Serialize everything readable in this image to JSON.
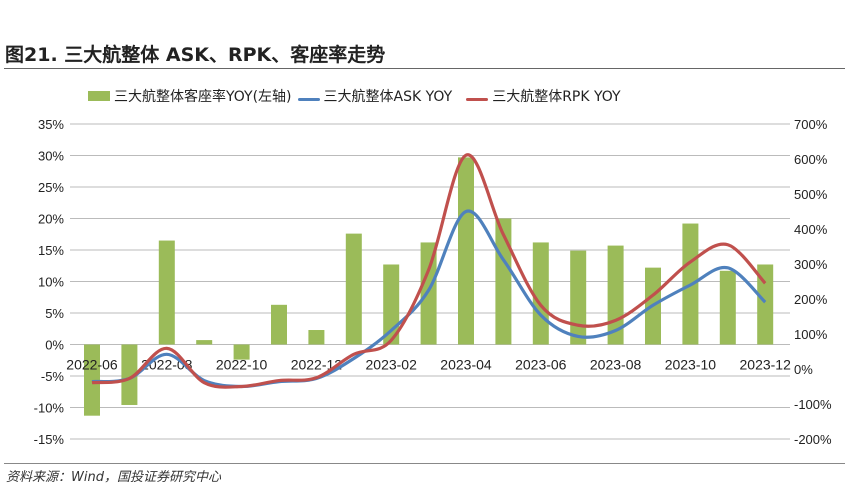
{
  "chart_data": {
    "type": "bar+line",
    "title": "图21. 三大航整体 ASK、RPK、客座率走势",
    "categories": [
      "2022-06",
      "2022-07",
      "2022-08",
      "2022-09",
      "2022-10",
      "2022-11",
      "2022-12",
      "2023-01",
      "2023-02",
      "2023-03",
      "2023-04",
      "2023-05",
      "2023-06",
      "2023-07",
      "2023-08",
      "2023-09",
      "2023-10",
      "2023-11",
      "2023-12"
    ],
    "x_tick_labels": [
      "2022-06",
      "2022-08",
      "2022-10",
      "2022-12",
      "2023-02",
      "2023-04",
      "2023-06",
      "2023-08",
      "2023-10",
      "2023-12"
    ],
    "left_axis": {
      "ylim": [
        -15,
        35
      ],
      "ticks": [
        "-15%",
        "-10%",
        "-5%",
        "0%",
        "5%",
        "10%",
        "15%",
        "20%",
        "25%",
        "30%",
        "35%"
      ]
    },
    "right_axis": {
      "ylim": [
        -200,
        700
      ],
      "ticks": [
        "-200%",
        "-100%",
        "0%",
        "100%",
        "200%",
        "300%",
        "400%",
        "500%",
        "600%",
        "700%"
      ]
    },
    "series": [
      {
        "name": "三大航整体客座率YOY(左轴)",
        "type": "bar",
        "axis": "left",
        "color": "#9BBB59",
        "values": [
          -11.3,
          -9.6,
          16.5,
          0.7,
          -2.4,
          6.3,
          2.3,
          17.6,
          12.7,
          16.2,
          29.7,
          20.0,
          16.2,
          14.9,
          15.7,
          12.2,
          19.2,
          11.7,
          12.7
        ]
      },
      {
        "name": "三大航整体ASK YOY",
        "type": "line",
        "axis": "right",
        "color": "#4F81BD",
        "values": [
          -36,
          -27,
          42,
          -33,
          -50,
          -36,
          -27,
          30,
          110,
          225,
          450,
          312,
          154,
          93,
          110,
          182,
          240,
          289,
          191
        ]
      },
      {
        "name": "三大航整体RPK YOY",
        "type": "line",
        "axis": "right",
        "color": "#C0504D",
        "values": [
          -39,
          -27,
          59,
          -39,
          -50,
          -33,
          -25,
          42,
          82,
          283,
          611,
          384,
          182,
          125,
          139,
          211,
          306,
          355,
          245
        ]
      }
    ],
    "legend_position": "top",
    "grid": true
  },
  "source": "资料来源：Wind，国投证券研究中心"
}
